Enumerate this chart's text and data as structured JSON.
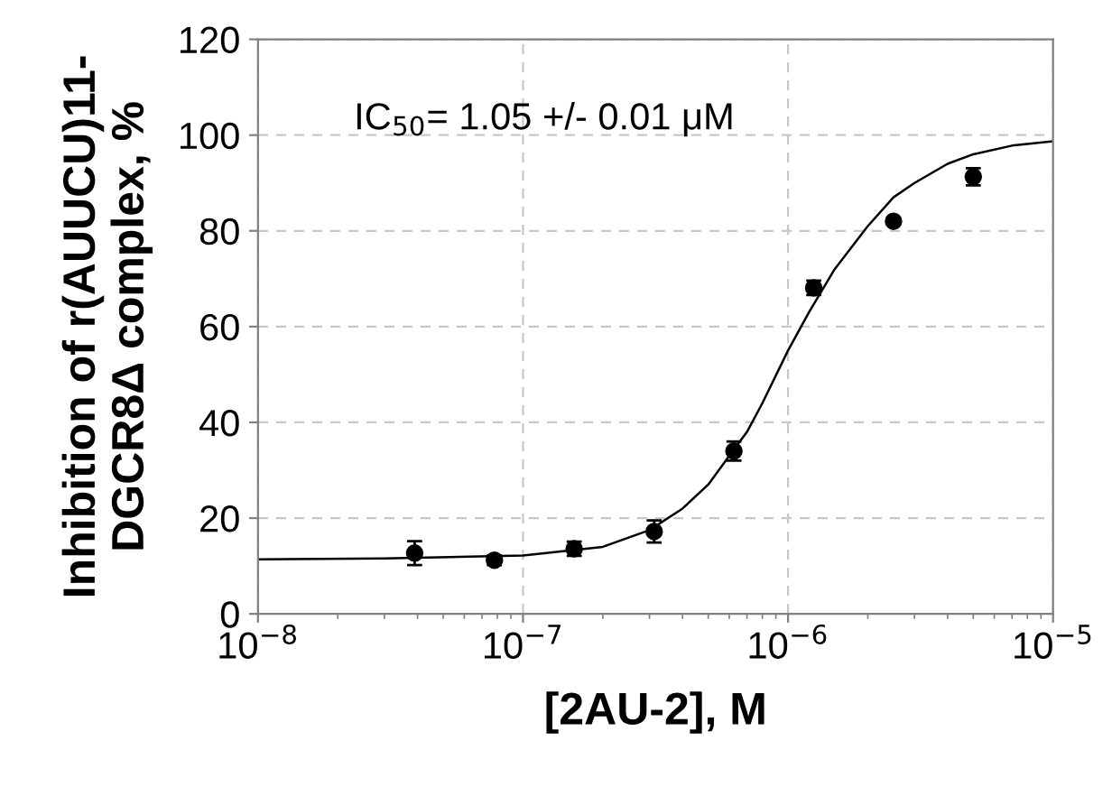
{
  "chart_data": {
    "type": "scatter",
    "xlabel": "[2AU-2], M",
    "ylabel": "Inhibition of r(AUUCU)11-\nDGCR8Δ complex, %",
    "log": "x",
    "grid": true,
    "marker": "circle",
    "xlim": [
      1e-08,
      1e-05
    ],
    "ylim": [
      0,
      120
    ],
    "xticks": [
      {
        "value": 1e-08,
        "label": "10$^{−8}$"
      },
      {
        "value": 1e-07,
        "label": "10$^{−7}$"
      },
      {
        "value": 1e-06,
        "label": "10$^{−6}$"
      },
      {
        "value": 1e-05,
        "label": "10$^{−5}$"
      }
    ],
    "yticks": [
      0,
      20,
      40,
      60,
      80,
      100,
      120
    ],
    "annotations": [
      "IC$_{50}$= 1.05 +/- 0.01 μM"
    ],
    "series": [
      {
        "color": "#000000",
        "x": [
          3.9e-08,
          7.8e-08,
          1.56e-07,
          3.125e-07,
          6.25e-07,
          1.25e-06,
          2.5e-06,
          5e-06
        ],
        "values": [
          12.7,
          11.2,
          13.6,
          17.2,
          34,
          68.1,
          82,
          91.3
        ],
        "errors": [
          2.5,
          1,
          1.5,
          2.3,
          2,
          1.5,
          0.5,
          1.8
        ]
      },
      {
        "type": "line",
        "color": "#000000",
        "marker": "none",
        "x": [
          1e-08,
          3e-08,
          1e-07,
          2e-07,
          3e-07,
          4e-07,
          5e-07,
          6e-07,
          7e-07,
          8e-07,
          1e-06,
          1.2e-06,
          1.5e-06,
          2e-06,
          2.5e-06,
          3e-06,
          4e-06,
          5e-06,
          7e-06,
          1e-05
        ],
        "values": [
          11.4,
          11.6,
          12.2,
          14,
          17.5,
          22,
          27,
          33,
          38,
          44,
          55,
          63,
          72,
          81,
          87,
          90,
          94,
          96,
          97.8,
          98.7
        ]
      }
    ]
  }
}
